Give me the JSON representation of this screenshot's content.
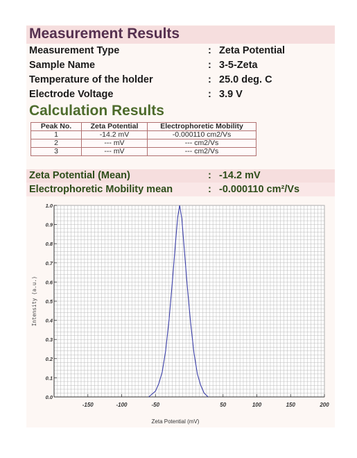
{
  "measurement": {
    "title": "Measurement Results",
    "rows": [
      {
        "label": "Measurement Type",
        "value": "Zeta Potential"
      },
      {
        "label": "Sample Name",
        "value": "3-5-Zeta"
      },
      {
        "label": "Temperature of the holder",
        "value": "25.0 deg. C"
      },
      {
        "label": "Electrode Voltage",
        "value": "3.9 V"
      }
    ]
  },
  "calculation": {
    "title": "Calculation Results",
    "headers": [
      "Peak No.",
      "Zeta Potential",
      "Electrophoretic Mobility"
    ],
    "rows": [
      [
        "1",
        "-14.2 mV",
        "-0.000110 cm2/Vs"
      ],
      [
        "2",
        "--- mV",
        "--- cm2/Vs"
      ],
      [
        "3",
        "--- mV",
        "--- cm2/Vs"
      ]
    ]
  },
  "summary": {
    "mean_zeta_label": "Zeta Potential (Mean)",
    "mean_zeta_value": "-14.2 mV",
    "mean_mobility_label": "Electrophoretic Mobility mean",
    "mean_mobility_value": "-0.000110  cm²/Vs"
  },
  "colors": {
    "band": "#f6dede",
    "title_measurement": "#55304f",
    "title_calculation": "#4d6b2c",
    "curve": "#3b3fa8",
    "grid": "#b9b9b9"
  },
  "chart_data": {
    "type": "line",
    "xlabel": "Zeta Potential (mV)",
    "ylabel": "Intensity (a.u.)",
    "xlim": [
      -200,
      200
    ],
    "ylim": [
      0,
      1.0
    ],
    "xticks": [
      "-150",
      "-100",
      "-50",
      "50",
      "100",
      "150",
      "200"
    ],
    "yticks": [
      "0.0",
      "0.1",
      "0.2",
      "0.3",
      "0.4",
      "0.5",
      "0.6",
      "0.7",
      "0.8",
      "0.9",
      "1.0"
    ],
    "grid": true,
    "series": [
      {
        "x": [
          -60,
          -50,
          -45,
          -40,
          -35,
          -30,
          -25,
          -20,
          -17,
          -14.2,
          -11,
          -8,
          -3,
          2,
          7,
          12,
          17,
          22,
          28
        ],
        "y": [
          0.0,
          0.03,
          0.07,
          0.13,
          0.24,
          0.4,
          0.6,
          0.82,
          0.94,
          1.0,
          0.93,
          0.8,
          0.58,
          0.39,
          0.23,
          0.12,
          0.06,
          0.02,
          0.0
        ]
      }
    ]
  }
}
